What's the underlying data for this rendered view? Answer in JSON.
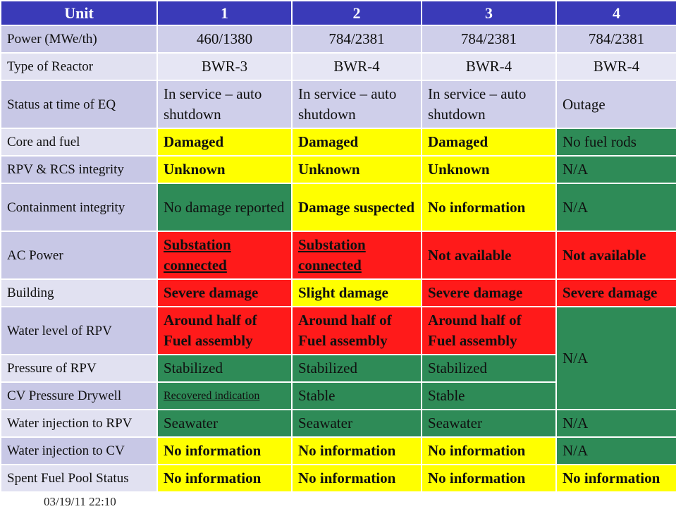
{
  "header": {
    "col0": "Unit",
    "units": [
      "1",
      "2",
      "3",
      "4"
    ]
  },
  "rows": {
    "power": {
      "label": "Power (MWe/th)",
      "values": [
        "460/1380",
        "784/2381",
        "784/2381",
        "784/2381"
      ]
    },
    "reactor": {
      "label": "Type of Reactor",
      "values": [
        "BWR-3",
        "BWR-4",
        "BWR-4",
        "BWR-4"
      ]
    },
    "status": {
      "label": "Status at time of EQ",
      "values": [
        "In service – auto shutdown",
        "In service – auto shutdown",
        "In service – auto shutdown",
        "Outage"
      ]
    },
    "core": {
      "label": "Core and fuel",
      "values": [
        "Damaged",
        "Damaged",
        "Damaged",
        "No fuel rods"
      ]
    },
    "rpv": {
      "label": "RPV & RCS integrity",
      "values": [
        "Unknown",
        "Unknown",
        "Unknown",
        "N/A"
      ]
    },
    "containment": {
      "label": "Containment integrity",
      "values": [
        "No damage reported",
        "Damage suspected",
        "No information",
        "N/A"
      ]
    },
    "ac": {
      "label": "AC Power",
      "values": [
        "Substation connected",
        "Substation connected",
        "Not available",
        "Not available"
      ]
    },
    "building": {
      "label": "Building",
      "values": [
        "Severe damage",
        "Slight damage",
        "Severe damage",
        "Severe damage"
      ]
    },
    "water_level": {
      "label": "Water level of RPV",
      "values": [
        "Around half of Fuel assembly",
        "Around half of Fuel assembly",
        "Around half of Fuel assembly"
      ]
    },
    "pressure": {
      "label": "Pressure of RPV",
      "values": [
        "Stabilized",
        "Stabilized",
        "Stabilized"
      ]
    },
    "cv_pressure": {
      "label": "CV Pressure Drywell",
      "values": [
        "Recovered indication",
        "Stable",
        "Stable"
      ]
    },
    "unit4_merged": "N/A",
    "inj_rpv": {
      "label": "Water injection to RPV",
      "values": [
        "Seawater",
        "Seawater",
        "Seawater",
        "N/A"
      ]
    },
    "inj_cv": {
      "label": "Water injection to CV",
      "values": [
        "No information",
        "No information",
        "No information",
        "N/A"
      ]
    },
    "spent": {
      "label": "Spent Fuel Pool Status",
      "values": [
        "No information",
        "No information",
        "No information",
        "No information"
      ]
    }
  },
  "footer": {
    "timestamp": "03/19/11 22:10"
  },
  "colors": {
    "header": "#3a3ab8",
    "yellow": "#ffff00",
    "green": "#2e8b57",
    "red": "#ff1a1a",
    "label": "#c8c8e6"
  }
}
